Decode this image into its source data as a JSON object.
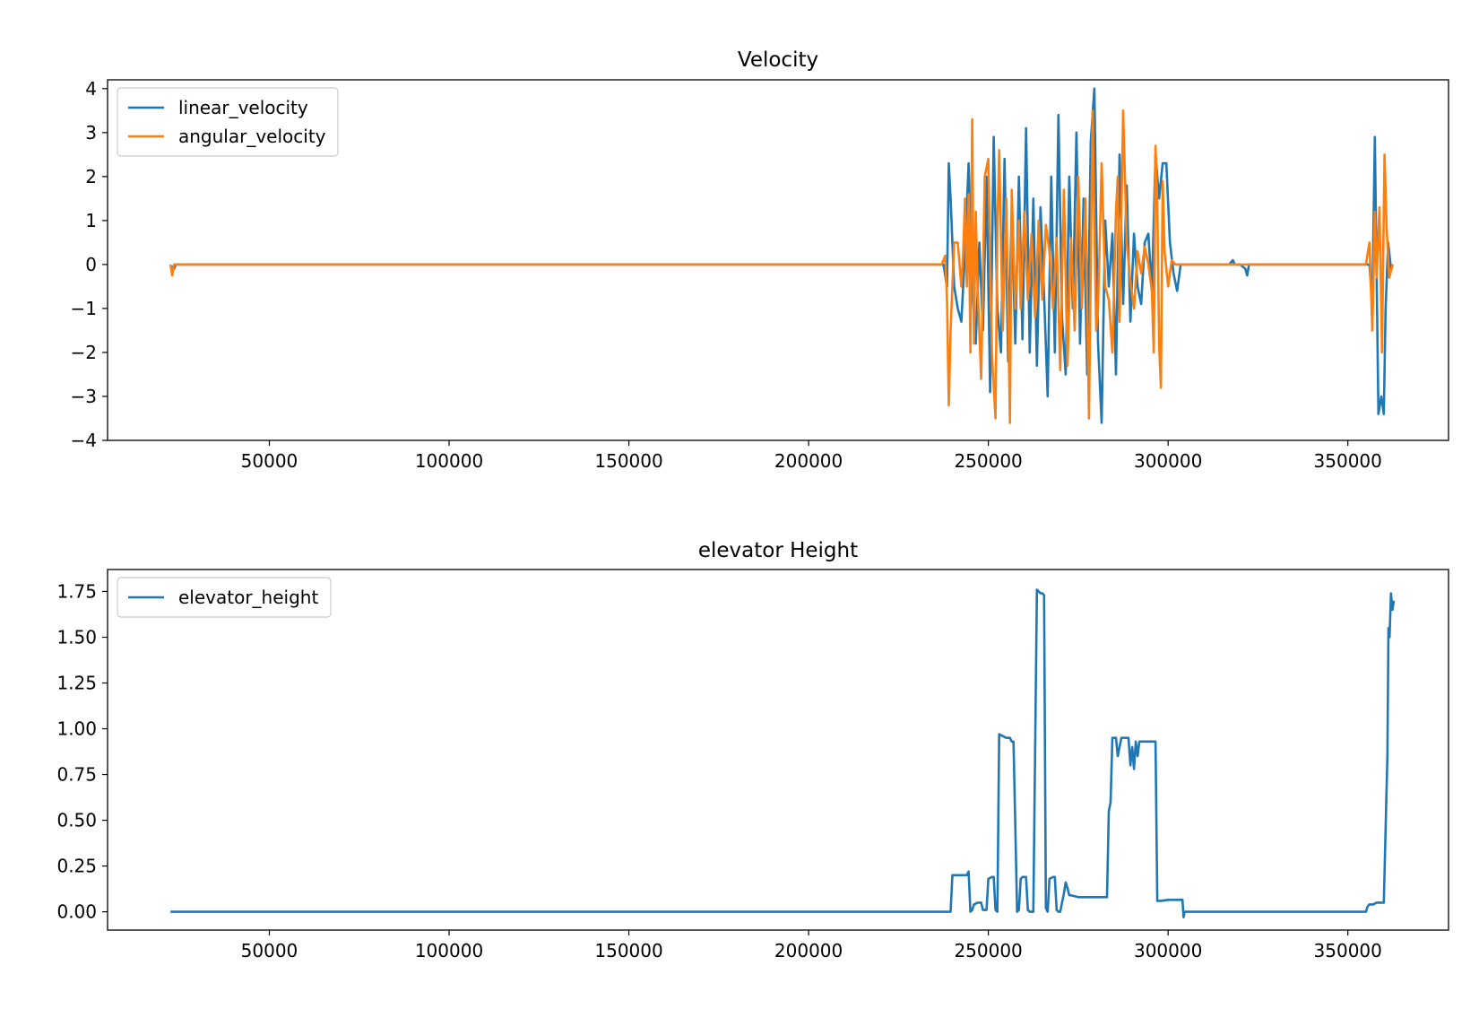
{
  "chart_data": [
    {
      "type": "line",
      "title": "Velocity",
      "xlabel": "",
      "ylabel": "",
      "xlim": [
        5000,
        378000
      ],
      "ylim": [
        -4,
        4.2
      ],
      "xticks": [
        50000,
        100000,
        150000,
        200000,
        250000,
        300000,
        350000
      ],
      "xtick_labels": [
        "50000",
        "100000",
        "150000",
        "200000",
        "250000",
        "300000",
        "350000"
      ],
      "yticks": [
        -4,
        -3,
        -2,
        -1,
        0,
        1,
        2,
        3,
        4
      ],
      "ytick_labels": [
        "−4",
        "−3",
        "−2",
        "−1",
        "0",
        "1",
        "2",
        "3",
        "4"
      ],
      "grid": false,
      "legend_position": "upper-left",
      "series": [
        {
          "name": "linear_velocity",
          "color": "#1f77b4",
          "x": [
            22500,
            23000,
            23500,
            24000,
            26000,
            150000,
            236000,
            237500,
            238500,
            239000,
            239500,
            240500,
            241500,
            242500,
            243500,
            244500,
            245500,
            246500,
            247500,
            248500,
            249500,
            250500,
            251500,
            252500,
            253500,
            254500,
            255500,
            256500,
            257500,
            258500,
            259500,
            260500,
            261500,
            262500,
            263500,
            264500,
            265500,
            266500,
            267500,
            268500,
            269500,
            270500,
            271500,
            272500,
            273500,
            274500,
            275500,
            276500,
            277500,
            278500,
            279500,
            280500,
            281500,
            282500,
            283500,
            284500,
            285500,
            286500,
            287500,
            288500,
            289500,
            290500,
            291500,
            292500,
            293500,
            294500,
            295500,
            296500,
            297500,
            298500,
            299500,
            300500,
            301500,
            302500,
            303500,
            304500,
            310000,
            317000,
            318000,
            318500,
            320000,
            321500,
            322000,
            322500,
            324000,
            355000,
            356000,
            356800,
            357500,
            358500,
            359300,
            360000,
            360500,
            361200,
            362000,
            362500
          ],
          "y": [
            -0.1,
            -0.05,
            -0.1,
            0,
            0,
            0,
            0,
            0,
            -0.5,
            2.3,
            1.5,
            -0.5,
            -1.0,
            -1.3,
            0.3,
            2.3,
            -0.5,
            -1.8,
            0.5,
            -1.5,
            2.0,
            -2.9,
            2.9,
            -1.0,
            -2.0,
            2.4,
            -2.2,
            1.2,
            -1.8,
            2.0,
            -1.7,
            3.1,
            -2.0,
            1.5,
            -2.3,
            1.3,
            -0.7,
            -3.0,
            2.0,
            -2.0,
            3.4,
            -1.2,
            -2.5,
            2.0,
            -1.0,
            3.0,
            -1.8,
            1.5,
            -2.5,
            2.8,
            4.0,
            -1.8,
            -3.6,
            1.0,
            -0.5,
            0.7,
            -2.5,
            2.5,
            -0.9,
            1.8,
            -1.3,
            0.7,
            -0.5,
            -0.9,
            0.5,
            0.7,
            -0.6,
            2.5,
            1.5,
            2.3,
            2.3,
            0.5,
            -0.2,
            -0.6,
            0,
            0,
            0,
            0,
            0.1,
            0,
            0,
            -0.1,
            -0.25,
            0,
            0,
            0,
            0,
            -0.9,
            2.9,
            -3.4,
            -3.0,
            -3.4,
            -1.0,
            0.5,
            -0.1,
            0
          ]
        },
        {
          "name": "angular_velocity",
          "color": "#ff7f0e",
          "x": [
            22500,
            23000,
            23500,
            24000,
            26000,
            150000,
            236000,
            237000,
            238000,
            238500,
            239000,
            239500,
            240500,
            241500,
            242500,
            243000,
            243500,
            244000,
            244500,
            245000,
            245500,
            246000,
            246500,
            247000,
            248000,
            249000,
            250000,
            251000,
            252000,
            252500,
            253000,
            254000,
            255000,
            256000,
            256500,
            257500,
            258500,
            259000,
            260000,
            261000,
            262000,
            263000,
            264000,
            265000,
            266000,
            267000,
            268000,
            269000,
            270000,
            271000,
            272000,
            273000,
            274000,
            275000,
            276000,
            277000,
            278000,
            279000,
            280000,
            280500,
            281500,
            282500,
            283500,
            284500,
            285500,
            286000,
            286500,
            287500,
            288500,
            289500,
            290500,
            291500,
            292500,
            293500,
            294500,
            295500,
            296000,
            296500,
            297000,
            297500,
            298000,
            298500,
            299000,
            300000,
            301000,
            302000,
            303000,
            318000,
            355000,
            356000,
            356800,
            357500,
            358000,
            358800,
            359500,
            360200,
            360800,
            361500,
            362500
          ],
          "y": [
            0,
            -0.25,
            0,
            0,
            0,
            0,
            0,
            0,
            0.2,
            -0.8,
            -3.2,
            -1.5,
            0.5,
            0.5,
            -0.5,
            0.3,
            1.5,
            -0.5,
            1.6,
            -2.0,
            3.3,
            -1.8,
            1.2,
            -0.5,
            -2.6,
            2.0,
            2.4,
            -2.0,
            -3.5,
            0.8,
            2.6,
            -1.5,
            1.5,
            -3.6,
            1.7,
            -1.0,
            1.0,
            -1.0,
            1.2,
            -0.8,
            0.7,
            -1.2,
            1.0,
            -0.8,
            0.9,
            0.3,
            -1.0,
            0.6,
            -2.4,
            1.7,
            -2.3,
            0.6,
            -1.5,
            2.0,
            -1.0,
            1.5,
            -3.5,
            3.5,
            -1.5,
            -1.0,
            2.3,
            -0.5,
            -0.8,
            -2.0,
            1.2,
            2.0,
            -1.3,
            3.5,
            0.5,
            -0.4,
            -1.0,
            0.3,
            -0.2,
            0.4,
            0,
            -0.6,
            -2.0,
            2.7,
            1.4,
            -1.8,
            -2.8,
            1.9,
            0.3,
            -0.5,
            0.1,
            0,
            0,
            0,
            0,
            0.5,
            -1.5,
            1.2,
            -0.3,
            1.3,
            -2.0,
            2.5,
            0.8,
            -0.3,
            0
          ]
        }
      ]
    },
    {
      "type": "line",
      "title": "elevator Height",
      "xlabel": "",
      "ylabel": "",
      "xlim": [
        5000,
        378000
      ],
      "ylim": [
        -0.1,
        1.87
      ],
      "xticks": [
        50000,
        100000,
        150000,
        200000,
        250000,
        300000,
        350000
      ],
      "xtick_labels": [
        "50000",
        "100000",
        "150000",
        "200000",
        "250000",
        "300000",
        "350000"
      ],
      "yticks": [
        0,
        0.25,
        0.5,
        0.75,
        1.0,
        1.25,
        1.5,
        1.75
      ],
      "ytick_labels": [
        "0.00",
        "0.25",
        "0.50",
        "0.75",
        "1.00",
        "1.25",
        "1.50",
        "1.75"
      ],
      "grid": false,
      "legend_position": "upper-left",
      "series": [
        {
          "name": "elevator_height",
          "color": "#1f77b4",
          "x": [
            22500,
            236000,
            237000,
            239500,
            240000,
            241000,
            243000,
            244000,
            244500,
            245000,
            245500,
            246000,
            247000,
            248000,
            248500,
            249500,
            250000,
            251000,
            251500,
            252000,
            252500,
            253000,
            255000,
            256000,
            256500,
            257000,
            258000,
            258500,
            259000,
            259500,
            260500,
            261000,
            261500,
            262000,
            262500,
            263500,
            264500,
            265000,
            265500,
            266000,
            266500,
            267000,
            268000,
            268500,
            269000,
            269500,
            270000,
            271000,
            271500,
            272000,
            272500,
            273000,
            275000,
            276000,
            277000,
            283000,
            283500,
            284000,
            284500,
            285000,
            285500,
            286000,
            286500,
            287000,
            288000,
            288500,
            289000,
            289500,
            290000,
            290500,
            291000,
            291500,
            292000,
            292500,
            293000,
            294000,
            296000,
            296500,
            297000,
            298000,
            300000,
            302000,
            304000,
            304300,
            304600,
            355000,
            355500,
            356000,
            357000,
            358000,
            360000,
            361000,
            361300,
            361600,
            362000,
            362400,
            362800
          ],
          "y": [
            0,
            0,
            0,
            0,
            0.2,
            0.2,
            0.2,
            0.2,
            0.22,
            0,
            0.01,
            0.04,
            0.05,
            0.05,
            0.01,
            0.01,
            0.18,
            0.19,
            0.19,
            0.01,
            0,
            0.97,
            0.95,
            0.95,
            0.93,
            0.93,
            0,
            0.01,
            0.18,
            0.19,
            0.19,
            0.01,
            0,
            0,
            0,
            1.76,
            1.74,
            1.74,
            1.73,
            0.02,
            0,
            0.18,
            0.19,
            0.19,
            0.01,
            0,
            0,
            0.1,
            0.16,
            0.13,
            0.09,
            0.09,
            0.08,
            0.08,
            0.08,
            0.08,
            0.55,
            0.6,
            0.95,
            0.95,
            0.95,
            0.85,
            0.9,
            0.95,
            0.95,
            0.95,
            0.95,
            0.8,
            0.9,
            0.78,
            0.93,
            0.85,
            0.93,
            0.93,
            0.93,
            0.93,
            0.93,
            0.93,
            0.06,
            0.06,
            0.065,
            0.065,
            0.065,
            -0.03,
            0,
            0,
            0.03,
            0.04,
            0.04,
            0.05,
            0.05,
            0.85,
            1.55,
            1.5,
            1.74,
            1.65,
            1.7
          ]
        }
      ]
    }
  ]
}
